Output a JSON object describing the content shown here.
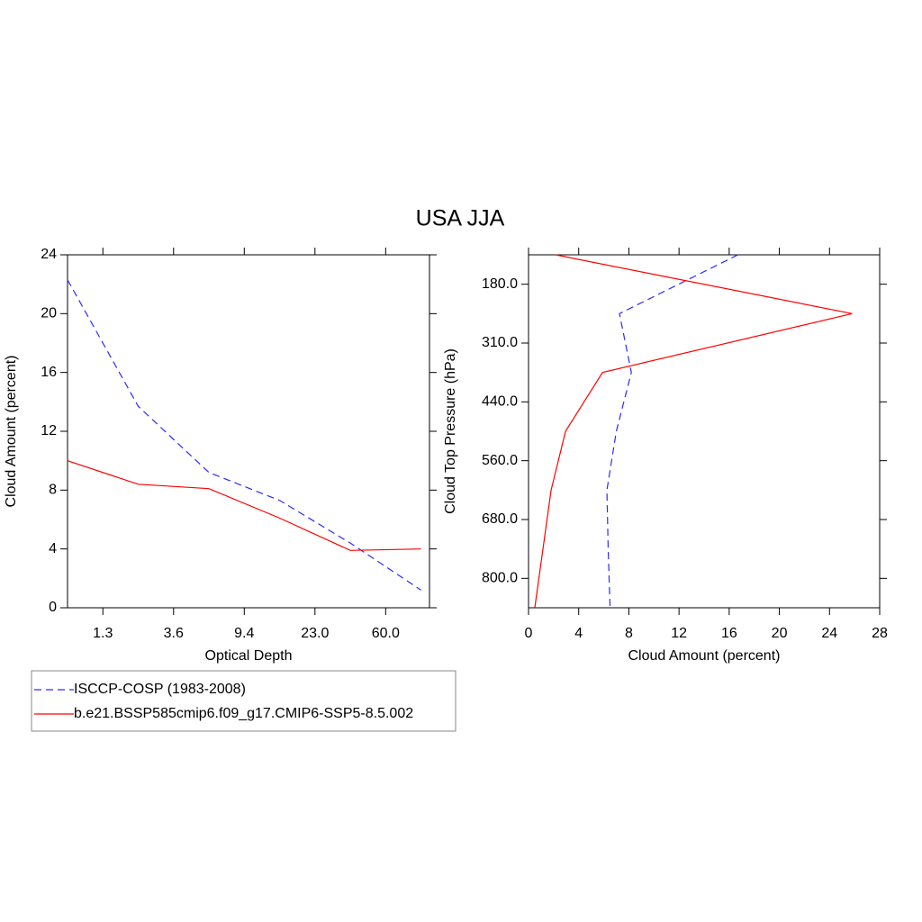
{
  "title": "USA JJA",
  "chart_data": [
    {
      "type": "line",
      "orientation": "vertical",
      "xlabel": "Optical Depth",
      "ylabel": "Cloud Amount (percent)",
      "x": [
        0,
        1,
        2,
        3,
        4,
        5
      ],
      "xlim": [
        0,
        5.12
      ],
      "xticks": [
        {
          "value": 0.5,
          "label": "1.3"
        },
        {
          "value": 1.5,
          "label": "3.6"
        },
        {
          "value": 2.5,
          "label": "9.4"
        },
        {
          "value": 3.5,
          "label": "23.0"
        },
        {
          "value": 4.5,
          "label": "60.0"
        }
      ],
      "ylim": [
        0,
        24
      ],
      "yticks": [
        0,
        4,
        8,
        12,
        16,
        20,
        24
      ],
      "series": [
        {
          "name": "ISCCP-COSP (1983-2008)",
          "color": "#2b2bff",
          "dash": "dashed",
          "values": [
            22.3,
            13.7,
            9.2,
            7.3,
            4.4,
            1.2
          ]
        },
        {
          "name": "b.e21.BSSP585cmip6.f09_g17.CMIP6-SSP5-8.5.002",
          "color": "#ff0000",
          "dash": "solid",
          "values": [
            10.0,
            8.4,
            8.1,
            6.1,
            3.9,
            4.0
          ]
        }
      ]
    },
    {
      "type": "line",
      "orientation": "horizontal",
      "xlabel": "Cloud Amount (percent)",
      "ylabel": "Cloud Top Pressure (hPa)",
      "y": [
        0,
        1,
        2,
        3,
        4,
        5,
        6
      ],
      "ylim": [
        0,
        6
      ],
      "y_reversed": true,
      "yticks": [
        {
          "value": 0.5,
          "label": "180.0"
        },
        {
          "value": 1.5,
          "label": "310.0"
        },
        {
          "value": 2.5,
          "label": "440.0"
        },
        {
          "value": 3.5,
          "label": "560.0"
        },
        {
          "value": 4.5,
          "label": "680.0"
        },
        {
          "value": 5.5,
          "label": "800.0"
        }
      ],
      "xlim": [
        0,
        28
      ],
      "xticks": [
        0,
        4,
        8,
        12,
        16,
        20,
        24,
        28
      ],
      "series": [
        {
          "color": "#2b2bff",
          "dash": "dashed",
          "values": [
            16.7,
            7.25,
            8.2,
            7.0,
            6.25,
            6.35,
            6.5
          ]
        },
        {
          "color": "#ff0000",
          "dash": "solid",
          "values": [
            2.15,
            25.8,
            5.9,
            2.95,
            1.8,
            1.15,
            0.5
          ]
        }
      ]
    }
  ]
}
